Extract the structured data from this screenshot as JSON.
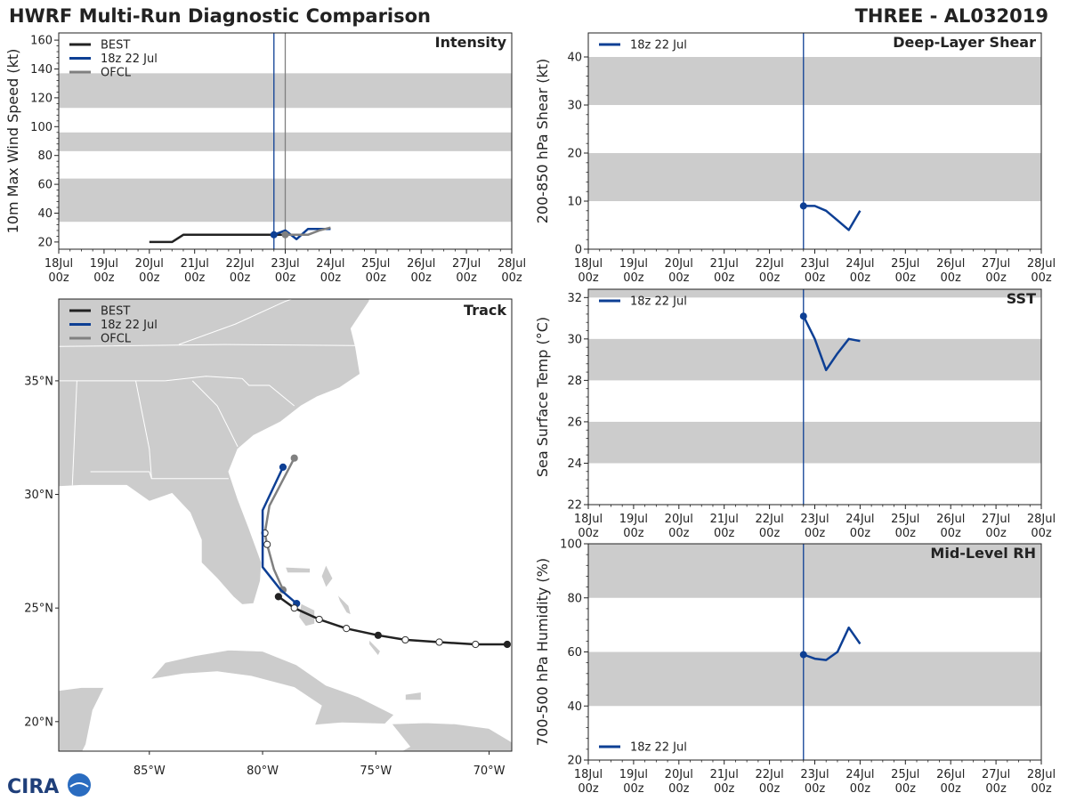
{
  "header": {
    "title": "HWRF Multi-Run Diagnostic Comparison",
    "storm": "THREE - AL032019"
  },
  "colors": {
    "best": "#222222",
    "hwrf": "#0d3f94",
    "ofcl": "#808080",
    "band": "#cccccc",
    "land": "#cccccc"
  },
  "legend_labels": {
    "best": "BEST",
    "hwrf": "18z 22 Jul",
    "ofcl": "OFCL"
  },
  "logo_text": "CIRA",
  "time_axis": {
    "min": 0,
    "max": 10,
    "ticks": [
      0,
      1,
      2,
      3,
      4,
      5,
      6,
      7,
      8,
      9,
      10
    ],
    "labels_top": [
      "18Jul",
      "19Jul",
      "20Jul",
      "21Jul",
      "22Jul",
      "23Jul",
      "24Jul",
      "25Jul",
      "26Jul",
      "27Jul",
      "28Jul"
    ],
    "labels_bottom": [
      "00z",
      "00z",
      "00z",
      "00z",
      "00z",
      "00z",
      "00z",
      "00z",
      "00z",
      "00z",
      "00z"
    ]
  },
  "chart_data": [
    {
      "id": "intensity",
      "type": "line",
      "title": "Intensity",
      "ylabel": "10m Max Wind Speed (kt)",
      "ylim": [
        15,
        165
      ],
      "yticks": [
        20,
        40,
        60,
        80,
        100,
        120,
        140,
        160
      ],
      "bands": [
        [
          34,
          64
        ],
        [
          83,
          96
        ],
        [
          113,
          137
        ]
      ],
      "vlines": [
        {
          "x": 4.75,
          "series": "hwrf"
        },
        {
          "x": 5.0,
          "series": "ofcl"
        }
      ],
      "legend": [
        "best",
        "hwrf",
        "ofcl"
      ],
      "series": [
        {
          "name": "best",
          "x": [
            2.0,
            2.25,
            2.5,
            2.75,
            3.0,
            3.25,
            3.5,
            3.75,
            4.0,
            4.25,
            4.5,
            4.75,
            5.0
          ],
          "y": [
            20,
            20,
            20,
            25,
            25,
            25,
            25,
            25,
            25,
            25,
            25,
            25,
            25
          ]
        },
        {
          "name": "hwrf",
          "x": [
            4.75,
            5.0,
            5.25,
            5.5,
            5.75,
            6.0
          ],
          "y": [
            25,
            28,
            22,
            29,
            29,
            29
          ],
          "marker_first": true
        },
        {
          "name": "ofcl",
          "x": [
            5.0,
            5.25,
            5.5,
            5.75,
            6.0
          ],
          "y": [
            25,
            25,
            25,
            28,
            30
          ],
          "marker_first": true
        }
      ]
    },
    {
      "id": "shear",
      "type": "line",
      "title": "Deep-Layer Shear",
      "ylabel": "200-850 hPa Shear (kt)",
      "ylim": [
        0,
        45
      ],
      "yticks": [
        0,
        10,
        20,
        30,
        40
      ],
      "bands": [
        [
          10,
          20
        ],
        [
          30,
          40
        ]
      ],
      "vlines": [
        {
          "x": 4.75,
          "series": "hwrf"
        }
      ],
      "legend": [
        "hwrf"
      ],
      "series": [
        {
          "name": "hwrf",
          "x": [
            4.75,
            5.0,
            5.25,
            5.5,
            5.75,
            6.0
          ],
          "y": [
            9,
            9,
            8,
            6,
            4,
            8
          ],
          "marker_first": true
        }
      ]
    },
    {
      "id": "sst",
      "type": "line",
      "title": "SST",
      "ylabel": "Sea Surface Temp (°C)",
      "ylim": [
        22,
        32.4
      ],
      "yticks": [
        22,
        24,
        26,
        28,
        30,
        32
      ],
      "bands": [
        [
          24,
          26
        ],
        [
          28,
          30
        ],
        [
          32,
          32.4
        ]
      ],
      "vlines": [
        {
          "x": 4.75,
          "series": "hwrf"
        }
      ],
      "legend": [
        "hwrf"
      ],
      "series": [
        {
          "name": "hwrf",
          "x": [
            4.75,
            5.0,
            5.25,
            5.5,
            5.75,
            6.0
          ],
          "y": [
            31.1,
            30.0,
            28.5,
            29.3,
            30.0,
            29.9
          ],
          "marker_first": true
        }
      ]
    },
    {
      "id": "rh",
      "type": "line",
      "title": "Mid-Level RH",
      "ylabel": "700-500 hPa Humidity (%)",
      "ylim": [
        20,
        100
      ],
      "yticks": [
        20,
        40,
        60,
        80,
        100
      ],
      "bands": [
        [
          40,
          60
        ],
        [
          80,
          100
        ]
      ],
      "vlines": [
        {
          "x": 4.75,
          "series": "hwrf"
        }
      ],
      "legend": [
        "hwrf"
      ],
      "series": [
        {
          "name": "hwrf",
          "x": [
            4.75,
            5.0,
            5.25,
            5.5,
            5.75,
            6.0
          ],
          "y": [
            59,
            57.5,
            57,
            60,
            69,
            63
          ],
          "marker_first": true
        }
      ]
    },
    {
      "id": "track",
      "type": "scatter",
      "title": "Track",
      "lon_range": [
        -89.0,
        -69.0
      ],
      "lat_range": [
        18.7,
        38.6
      ],
      "lon_ticks": [
        -85,
        -80,
        -75,
        -70
      ],
      "lon_tick_labels": [
        "85°W",
        "80°W",
        "75°W",
        "70°W"
      ],
      "lat_ticks": [
        20,
        25,
        30,
        35
      ],
      "lat_tick_labels": [
        "20°N",
        "25°N",
        "30°N",
        "35°N"
      ],
      "legend": [
        "best",
        "hwrf",
        "ofcl"
      ],
      "series": [
        {
          "name": "best",
          "lon": [
            -69.2,
            -70.6,
            -72.2,
            -73.7,
            -74.9,
            -76.3,
            -77.5,
            -78.6,
            -79.3
          ],
          "lat": [
            23.4,
            23.4,
            23.5,
            23.6,
            23.8,
            24.1,
            24.5,
            25.0,
            25.5
          ],
          "filled": [
            true,
            false,
            false,
            false,
            true,
            false,
            false,
            false,
            true
          ]
        },
        {
          "name": "hwrf",
          "lon": [
            -78.5,
            -79.2,
            -80.0,
            -80.0,
            -79.1
          ],
          "lat": [
            25.2,
            25.8,
            26.8,
            29.3,
            31.2
          ],
          "filled": [
            true,
            false,
            false,
            false,
            true
          ]
        },
        {
          "name": "ofcl",
          "lon": [
            -79.1,
            -79.5,
            -79.8,
            -79.9,
            -79.7,
            -78.6
          ],
          "lat": [
            25.8,
            26.7,
            27.8,
            28.3,
            29.5,
            31.6
          ],
          "filled": [
            true,
            false,
            false,
            false,
            false,
            true
          ],
          "marker_idx": [
            0,
            2,
            3,
            5
          ]
        }
      ]
    }
  ]
}
